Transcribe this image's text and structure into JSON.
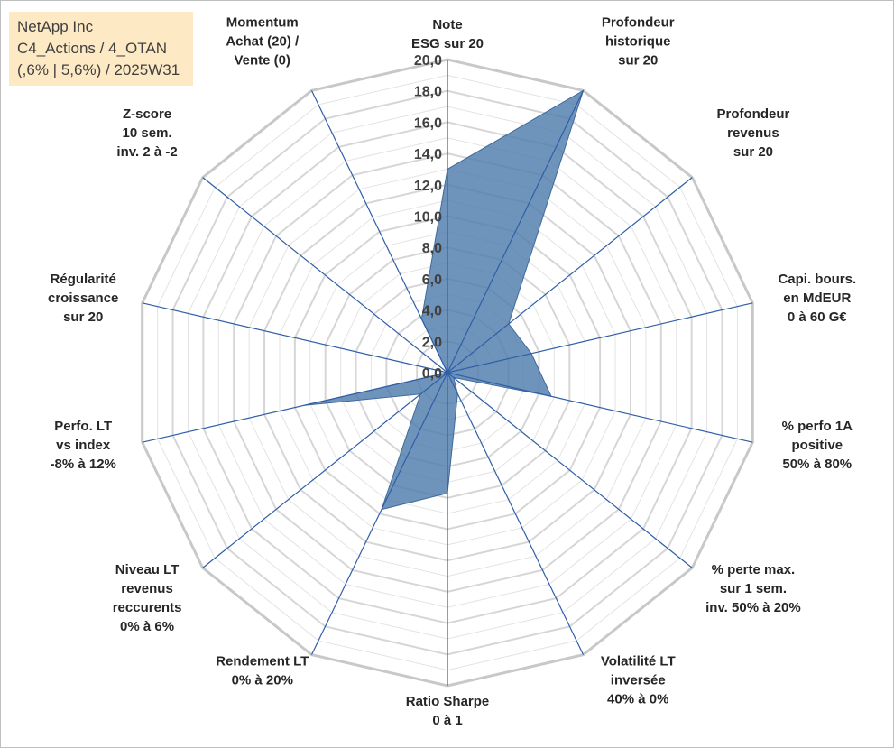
{
  "info_box": {
    "line1": "NetApp Inc",
    "line2": "C4_Actions / 4_OTAN",
    "line3": "(,6% | 5,6%) / 2025W31"
  },
  "chart_data": {
    "type": "radar",
    "r_min": 0,
    "r_max": 20,
    "ticks": [
      "0,0",
      "2,0",
      "4,0",
      "6,0",
      "8,0",
      "10,0",
      "12,0",
      "14,0",
      "16,0",
      "18,0",
      "20,0"
    ],
    "axes": [
      {
        "label": [
          "Note",
          "ESG sur 20"
        ],
        "value": 13
      },
      {
        "label": [
          "Profondeur",
          "historique",
          "sur 20"
        ],
        "value": 20
      },
      {
        "label": [
          "Profondeur",
          "revenus",
          "sur 20"
        ],
        "value": 5
      },
      {
        "label": [
          "Capi. bours.",
          "en MdEUR",
          "0 à 60 G€"
        ],
        "value": 5.5
      },
      {
        "label": [
          "% perfo 1A",
          "positive",
          "50% à 80%"
        ],
        "value": 6.8
      },
      {
        "label": [
          "% perte max.",
          "sur 1 sem.",
          "inv. 50% à 20%"
        ],
        "value": 0.5
      },
      {
        "label": [
          "Volatilité LT",
          "inversée",
          "40% à 0%"
        ],
        "value": 1.5
      },
      {
        "label": [
          "Ratio Sharpe",
          "0 à 1"
        ],
        "value": 7.7
      },
      {
        "label": [
          "Rendement LT",
          "0% à 20%"
        ],
        "value": 9.7
      },
      {
        "label": [
          "Niveau LT",
          "revenus",
          "reccurents",
          "0% à 6%"
        ],
        "value": 2.2
      },
      {
        "label": [
          "Perfo. LT",
          "vs index",
          "-8% à 12%"
        ],
        "value": 9.4
      },
      {
        "label": [
          "Régularité",
          "croissance",
          "sur 20"
        ],
        "value": 0
      },
      {
        "label": [
          "Z-score",
          "10 sem.",
          "inv. 2 à -2"
        ],
        "value": 0
      },
      {
        "label": [
          "Momentum",
          "Achat (20) /",
          "Vente (0)"
        ],
        "value": 3.8
      }
    ],
    "colors": {
      "fill": "#4f7cac",
      "stroke": "#3f6a9a",
      "spoke": "#2f5ea8",
      "outer_grid": "#c8c8c8",
      "inner_grid": "#e3e3e3"
    }
  }
}
